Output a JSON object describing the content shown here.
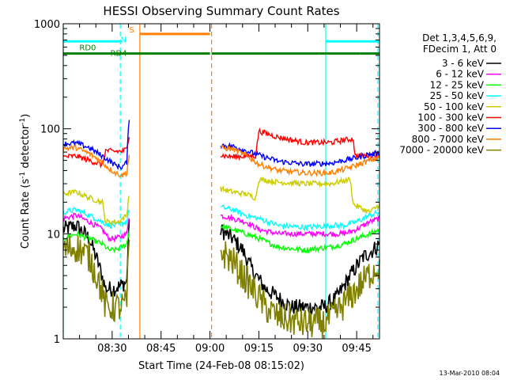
{
  "chart_data": {
    "type": "line",
    "title": "HESSI Observing Summary Count Rates",
    "xlabel": "Start Time (24-Feb-08 08:15:02)",
    "ylabel_main": "Count Rate (s",
    "ylabel_sup1": "-1",
    "ylabel_mid": " detector",
    "ylabel_sup2": "-1",
    "ylabel_end": ")",
    "yscale": "log",
    "ylim": [
      1,
      1000
    ],
    "xlim_minutes": [
      0,
      97
    ],
    "x_ticks": [
      {
        "label": "08:30",
        "min": 15
      },
      {
        "label": "08:45",
        "min": 30
      },
      {
        "label": "09:00",
        "min": 45
      },
      {
        "label": "09:15",
        "min": 60
      },
      {
        "label": "09:30",
        "min": 75
      },
      {
        "label": "09:45",
        "min": 90
      }
    ],
    "y_ticks": [
      {
        "label": "1",
        "value": 1
      },
      {
        "label": "10",
        "value": 10
      },
      {
        "label": "100",
        "value": 100
      },
      {
        "label": "1000",
        "value": 1000
      }
    ],
    "legend_header": [
      "Det 1,3,4,5,6,9,",
      "FDecim 1, Att 0"
    ],
    "series": [
      {
        "name": "3 - 6 keV",
        "color": "#000000",
        "data": [
          [
            0,
            11
          ],
          [
            4,
            12
          ],
          [
            8,
            9
          ],
          [
            11,
            5
          ],
          [
            13,
            3
          ],
          [
            15.5,
            3
          ],
          [
            17.5,
            3.2
          ],
          [
            19.5,
            3.5
          ],
          [
            20,
            10
          ],
          [
            20.3,
            12
          ],
          [
            45,
            null
          ],
          [
            48,
            11
          ],
          [
            52,
            9
          ],
          [
            55,
            7
          ],
          [
            58,
            4.5
          ],
          [
            62,
            3
          ],
          [
            70,
            2
          ],
          [
            80,
            2
          ],
          [
            84,
            2.5
          ],
          [
            88,
            4
          ],
          [
            92,
            6
          ],
          [
            95,
            7
          ],
          [
            97,
            8
          ]
        ]
      },
      {
        "name": "6 - 12 keV",
        "color": "#ff00ff",
        "data": [
          [
            0,
            14
          ],
          [
            4,
            15
          ],
          [
            8,
            13
          ],
          [
            12,
            11
          ],
          [
            14,
            9
          ],
          [
            16,
            9
          ],
          [
            18,
            9.5
          ],
          [
            19.5,
            10
          ],
          [
            20,
            14
          ],
          [
            20.3,
            15
          ],
          [
            45,
            null
          ],
          [
            48,
            15
          ],
          [
            52,
            14
          ],
          [
            56,
            13
          ],
          [
            60,
            11
          ],
          [
            66,
            10
          ],
          [
            74,
            10
          ],
          [
            82,
            10
          ],
          [
            86,
            10
          ],
          [
            90,
            11
          ],
          [
            94,
            13
          ],
          [
            97,
            14
          ]
        ]
      },
      {
        "name": "12 - 25 keV",
        "color": "#00ff00",
        "data": [
          [
            0,
            9
          ],
          [
            4,
            10
          ],
          [
            8,
            9
          ],
          [
            12,
            8
          ],
          [
            14,
            7
          ],
          [
            16,
            7
          ],
          [
            18,
            7.5
          ],
          [
            19.5,
            8
          ],
          [
            20,
            10
          ],
          [
            20.3,
            11
          ],
          [
            45,
            null
          ],
          [
            48,
            12
          ],
          [
            52,
            11
          ],
          [
            56,
            10
          ],
          [
            60,
            9
          ],
          [
            66,
            7.5
          ],
          [
            74,
            7
          ],
          [
            82,
            7.5
          ],
          [
            86,
            8
          ],
          [
            90,
            9
          ],
          [
            94,
            10
          ],
          [
            97,
            11
          ]
        ]
      },
      {
        "name": "25 - 50 keV",
        "color": "#00ffff",
        "data": [
          [
            0,
            16
          ],
          [
            4,
            17
          ],
          [
            8,
            15
          ],
          [
            12,
            13
          ],
          [
            14,
            12
          ],
          [
            16,
            12
          ],
          [
            18,
            12.5
          ],
          [
            19.5,
            13
          ],
          [
            20,
            16
          ],
          [
            20.3,
            17
          ],
          [
            45,
            null
          ],
          [
            48,
            18
          ],
          [
            52,
            17
          ],
          [
            56,
            15
          ],
          [
            60,
            14
          ],
          [
            66,
            12
          ],
          [
            74,
            11.5
          ],
          [
            82,
            12
          ],
          [
            86,
            12
          ],
          [
            90,
            13
          ],
          [
            94,
            15
          ],
          [
            97,
            16
          ]
        ]
      },
      {
        "name": "50 - 100 keV",
        "color": "#cccc00",
        "data": [
          [
            0,
            24
          ],
          [
            4,
            25
          ],
          [
            8,
            22
          ],
          [
            12,
            20
          ],
          [
            13,
            13
          ],
          [
            15,
            13
          ],
          [
            17,
            13
          ],
          [
            19.5,
            15
          ],
          [
            20,
            22
          ],
          [
            20.3,
            24
          ],
          [
            45,
            null
          ],
          [
            48,
            27
          ],
          [
            52,
            25
          ],
          [
            56,
            24
          ],
          [
            59,
            22
          ],
          [
            60,
            33
          ],
          [
            66,
            31
          ],
          [
            74,
            30
          ],
          [
            82,
            30
          ],
          [
            86,
            32
          ],
          [
            88,
            33
          ],
          [
            89,
            19
          ],
          [
            94,
            16
          ],
          [
            97,
            19
          ]
        ]
      },
      {
        "name": "100 - 300 keV",
        "color": "#ff0000",
        "data": [
          [
            0,
            54
          ],
          [
            4,
            55
          ],
          [
            8,
            50
          ],
          [
            12,
            45
          ],
          [
            13,
            62
          ],
          [
            15,
            61
          ],
          [
            18,
            61
          ],
          [
            19.5,
            64
          ],
          [
            20,
            80
          ],
          [
            20.3,
            90
          ],
          [
            45,
            null
          ],
          [
            48,
            56
          ],
          [
            52,
            54
          ],
          [
            56,
            55
          ],
          [
            59,
            55
          ],
          [
            60,
            95
          ],
          [
            66,
            83
          ],
          [
            74,
            74
          ],
          [
            82,
            74
          ],
          [
            86,
            78
          ],
          [
            89,
            80
          ],
          [
            89.5,
            55
          ],
          [
            94,
            56
          ],
          [
            97,
            57
          ]
        ]
      },
      {
        "name": "300 - 800 keV",
        "color": "#0000ff",
        "data": [
          [
            0,
            72
          ],
          [
            4,
            73
          ],
          [
            8,
            66
          ],
          [
            12,
            55
          ],
          [
            14,
            50
          ],
          [
            16,
            45
          ],
          [
            18,
            43
          ],
          [
            19.5,
            48
          ],
          [
            20,
            100
          ],
          [
            20.3,
            135
          ],
          [
            45,
            null
          ],
          [
            48,
            70
          ],
          [
            52,
            68
          ],
          [
            56,
            62
          ],
          [
            60,
            56
          ],
          [
            66,
            49
          ],
          [
            74,
            46
          ],
          [
            82,
            47
          ],
          [
            86,
            50
          ],
          [
            90,
            53
          ],
          [
            94,
            57
          ],
          [
            97,
            59
          ]
        ]
      },
      {
        "name": "800 - 7000 keV",
        "color": "#ff8000",
        "data": [
          [
            0,
            65
          ],
          [
            4,
            66
          ],
          [
            8,
            58
          ],
          [
            12,
            48
          ],
          [
            14,
            42
          ],
          [
            16,
            38
          ],
          [
            18,
            36
          ],
          [
            19.5,
            38
          ],
          [
            20,
            50
          ],
          [
            20.3,
            58
          ],
          [
            45,
            null
          ],
          [
            48,
            66
          ],
          [
            52,
            64
          ],
          [
            56,
            56
          ],
          [
            60,
            46
          ],
          [
            66,
            40
          ],
          [
            74,
            38
          ],
          [
            82,
            38
          ],
          [
            86,
            41
          ],
          [
            90,
            45
          ],
          [
            94,
            50
          ],
          [
            97,
            53
          ]
        ]
      },
      {
        "name": "7000 - 20000 keV",
        "color": "#808000",
        "data": [
          [
            0,
            7
          ],
          [
            4,
            7.5
          ],
          [
            8,
            6
          ],
          [
            11,
            3.5
          ],
          [
            13,
            2
          ],
          [
            15.5,
            2
          ],
          [
            17.5,
            2
          ],
          [
            19.5,
            2.2
          ],
          [
            20,
            6
          ],
          [
            20.3,
            7
          ],
          [
            45,
            null
          ],
          [
            48,
            7
          ],
          [
            52,
            5.5
          ],
          [
            55,
            4
          ],
          [
            58,
            3
          ],
          [
            62,
            2
          ],
          [
            66,
            1.6
          ],
          [
            74,
            1.4
          ],
          [
            80,
            1.4
          ],
          [
            84,
            1.8
          ],
          [
            88,
            2.5
          ],
          [
            92,
            3.5
          ],
          [
            95,
            4.5
          ],
          [
            97,
            5
          ]
        ]
      }
    ],
    "flags": [
      {
        "label": "S",
        "color": "#ff8000",
        "level": 800,
        "segments": [
          [
            23.5,
            45
          ]
        ]
      },
      {
        "label": "N",
        "color": "#00ffff",
        "level": 680,
        "segments": [
          [
            0,
            18
          ],
          [
            80.5,
            97
          ]
        ]
      },
      {
        "label": "RD0",
        "color": "#008000",
        "level": 600,
        "segments": []
      },
      {
        "label": "RD4",
        "color": "#008000",
        "level": 520,
        "segments": [
          [
            0,
            45
          ],
          [
            45.5,
            60.5
          ],
          [
            60.5,
            91
          ],
          [
            91,
            97
          ]
        ]
      }
    ],
    "vlines": [
      {
        "min": 17.5,
        "color": "#00ffff",
        "style": "dash"
      },
      {
        "min": 23.5,
        "color": "#ff8000",
        "style": "solid"
      },
      {
        "min": 45.5,
        "color": "#ff8000",
        "style": "dash"
      },
      {
        "min": 80.5,
        "color": "#00ffff",
        "style": "solid"
      },
      {
        "min": 96.5,
        "color": "#00ffff",
        "style": "dash"
      },
      {
        "min": 0,
        "color": "#00ffff",
        "style": "solid"
      }
    ],
    "grid": false,
    "legend_position": "right"
  },
  "footer_timestamp": "13-Mar-2010 08:04"
}
